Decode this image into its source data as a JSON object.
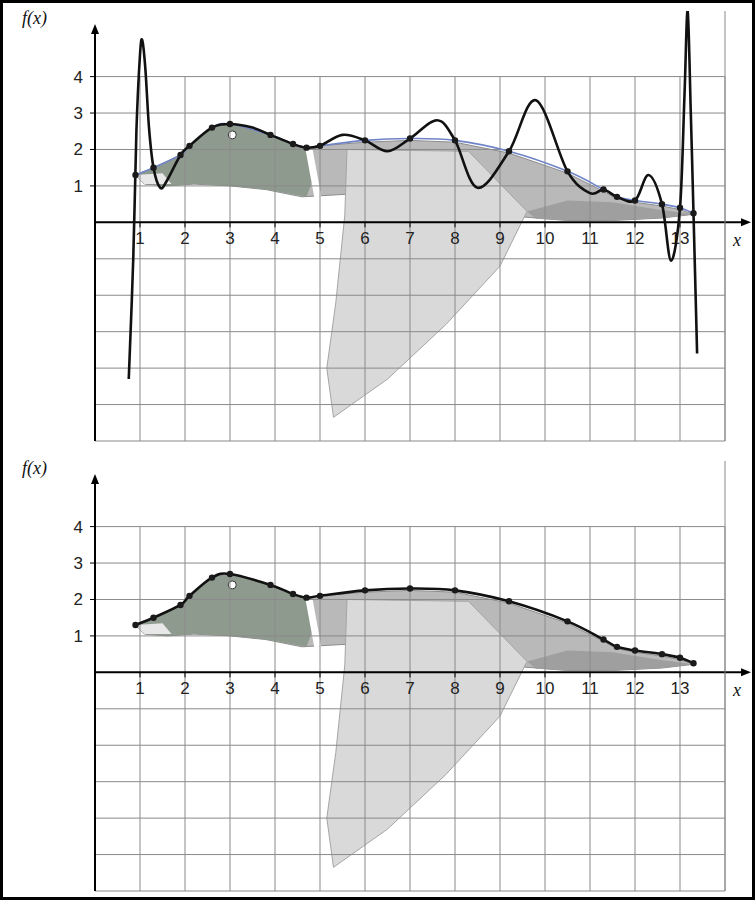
{
  "chart_data": [
    {
      "type": "line",
      "x_label": "x",
      "y_label": "f(x)",
      "xlim": [
        0,
        14
      ],
      "ylim": [
        -6,
        5.8
      ],
      "xticks": [
        1,
        2,
        3,
        4,
        5,
        6,
        7,
        8,
        9,
        10,
        11,
        12,
        13
      ],
      "yticks": [
        1,
        2,
        3,
        4
      ],
      "grid": true,
      "series": [
        {
          "type": "scatter",
          "color": "#1a1a1a",
          "marker": "circle",
          "x": [
            0.9,
            1.3,
            1.9,
            2.1,
            2.6,
            3.0,
            3.9,
            4.4,
            4.7,
            5.0,
            6.0,
            7.0,
            8.0,
            9.2,
            10.5,
            11.3,
            11.6,
            12.0,
            12.6,
            13.0,
            13.3
          ],
          "values": [
            1.3,
            1.5,
            1.85,
            2.1,
            2.6,
            2.7,
            2.4,
            2.15,
            2.05,
            2.1,
            2.25,
            2.3,
            2.25,
            1.95,
            1.4,
            0.9,
            0.7,
            0.6,
            0.5,
            0.4,
            0.25
          ]
        },
        {
          "type": "line",
          "color": "#6f84c8",
          "line_style": "solid",
          "x": [
            0.9,
            1.3,
            1.9,
            2.1,
            2.6,
            3.0,
            3.9,
            4.4,
            4.7,
            5.0,
            6.0,
            7.0,
            8.0,
            9.2,
            10.5,
            11.3,
            11.6,
            12.0,
            12.6,
            13.0,
            13.3
          ],
          "values": [
            1.3,
            1.5,
            1.85,
            2.1,
            2.6,
            2.7,
            2.4,
            2.15,
            2.05,
            2.1,
            2.25,
            2.3,
            2.25,
            1.95,
            1.4,
            0.9,
            0.7,
            0.6,
            0.5,
            0.4,
            0.25
          ]
        },
        {
          "type": "line",
          "color": "#111111",
          "line_style": "solid",
          "x": [
            0.75,
            0.85,
            0.92,
            1.0,
            1.05,
            1.12,
            1.2,
            1.3,
            1.45,
            1.6,
            1.9,
            2.1,
            2.6,
            3.0,
            3.5,
            3.9,
            4.4,
            4.7,
            5.0,
            5.5,
            6.0,
            6.5,
            7.0,
            7.6,
            8.0,
            8.5,
            9.2,
            9.8,
            10.5,
            11.0,
            11.3,
            11.6,
            12.0,
            12.3,
            12.6,
            12.8,
            13.0,
            13.1,
            13.17,
            13.24,
            13.3,
            13.38
          ],
          "values": [
            -4.3,
            -1.0,
            2.5,
            4.6,
            5.0,
            4.2,
            2.6,
            1.5,
            0.95,
            1.15,
            1.85,
            2.1,
            2.6,
            2.7,
            2.6,
            2.4,
            2.15,
            2.05,
            2.1,
            2.4,
            2.25,
            1.95,
            2.3,
            2.8,
            2.25,
            0.95,
            1.95,
            3.35,
            1.4,
            0.8,
            0.9,
            0.7,
            0.6,
            1.3,
            0.5,
            -1.05,
            0.4,
            3.5,
            5.8,
            3.0,
            0.25,
            -3.6
          ]
        }
      ]
    },
    {
      "type": "line",
      "x_label": "x",
      "y_label": "f(x)",
      "xlim": [
        0,
        14
      ],
      "ylim": [
        -6,
        5.8
      ],
      "xticks": [
        1,
        2,
        3,
        4,
        5,
        6,
        7,
        8,
        9,
        10,
        11,
        12,
        13
      ],
      "yticks": [
        1,
        2,
        3,
        4
      ],
      "grid": true,
      "series": [
        {
          "type": "scatter",
          "color": "#1a1a1a",
          "marker": "circle",
          "x": [
            0.9,
            1.3,
            1.9,
            2.1,
            2.6,
            3.0,
            3.9,
            4.4,
            4.7,
            5.0,
            6.0,
            7.0,
            8.0,
            9.2,
            10.5,
            11.3,
            11.6,
            12.0,
            12.6,
            13.0,
            13.3
          ],
          "values": [
            1.3,
            1.5,
            1.85,
            2.1,
            2.6,
            2.7,
            2.4,
            2.15,
            2.05,
            2.1,
            2.25,
            2.3,
            2.25,
            1.95,
            1.4,
            0.9,
            0.7,
            0.6,
            0.5,
            0.4,
            0.25
          ]
        },
        {
          "type": "line",
          "color": "#111111",
          "line_style": "solid",
          "x": [
            0.9,
            1.3,
            1.9,
            2.1,
            2.6,
            3.0,
            3.9,
            4.4,
            4.7,
            5.0,
            6.0,
            7.0,
            8.0,
            9.2,
            10.5,
            11.3,
            11.6,
            12.0,
            12.6,
            13.0,
            13.3
          ],
          "values": [
            1.3,
            1.5,
            1.85,
            2.1,
            2.6,
            2.7,
            2.4,
            2.15,
            2.05,
            2.1,
            2.25,
            2.3,
            2.25,
            1.95,
            1.4,
            0.9,
            0.7,
            0.6,
            0.5,
            0.4,
            0.25
          ]
        }
      ]
    }
  ]
}
